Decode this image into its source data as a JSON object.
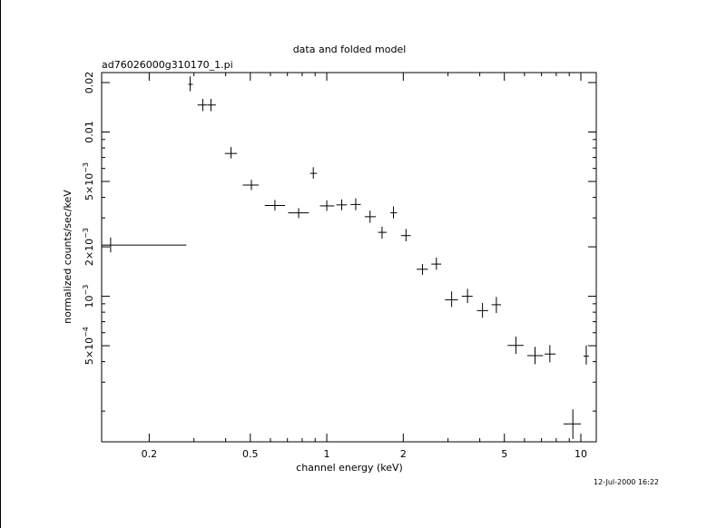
{
  "chart_data": {
    "type": "scatter",
    "title": "data and folded model",
    "subtitle": "ad76026000g310170_1.pi",
    "xlabel": "channel energy (keV)",
    "ylabel": "normalized counts/sec/keV",
    "timestamp": "12-Jul-2000 16:22",
    "x_scale": "log",
    "y_scale": "log",
    "xlim": [
      0.13,
      11.5
    ],
    "ylim": [
      0.00013,
      0.023
    ],
    "x_ticks": [
      {
        "value": 0.2,
        "label": "0.2"
      },
      {
        "value": 0.5,
        "label": "0.5"
      },
      {
        "value": 1,
        "label": "1"
      },
      {
        "value": 2,
        "label": "2"
      },
      {
        "value": 5,
        "label": "5"
      },
      {
        "value": 10,
        "label": "10"
      }
    ],
    "y_ticks": [
      {
        "value": 0.02,
        "label": "0.02"
      },
      {
        "value": 0.01,
        "label": "0.01"
      },
      {
        "value": 0.005,
        "mantissa": "5×10",
        "exponent": "−3"
      },
      {
        "value": 0.002,
        "mantissa": "2×10",
        "exponent": "−3"
      },
      {
        "value": 0.001,
        "mantissa": "10",
        "exponent": "−3"
      },
      {
        "value": 0.0005,
        "mantissa": "5×10",
        "exponent": "−4"
      }
    ],
    "points": [
      {
        "x": 0.141,
        "xlo": 0.13,
        "xhi": 0.28,
        "y": 0.00205,
        "ylo": 0.00185,
        "yhi": 0.00228
      },
      {
        "x": 0.29,
        "xlo": 0.285,
        "xhi": 0.297,
        "y": 0.0195,
        "ylo": 0.0177,
        "yhi": 0.0218
      },
      {
        "x": 0.325,
        "xlo": 0.31,
        "xhi": 0.338,
        "y": 0.0146,
        "ylo": 0.0134,
        "yhi": 0.0159
      },
      {
        "x": 0.35,
        "xlo": 0.339,
        "xhi": 0.366,
        "y": 0.0146,
        "ylo": 0.0134,
        "yhi": 0.0159
      },
      {
        "x": 0.42,
        "xlo": 0.397,
        "xhi": 0.443,
        "y": 0.0074,
        "ylo": 0.0069,
        "yhi": 0.0081
      },
      {
        "x": 0.505,
        "xlo": 0.467,
        "xhi": 0.54,
        "y": 0.00475,
        "ylo": 0.00443,
        "yhi": 0.00512
      },
      {
        "x": 0.625,
        "xlo": 0.57,
        "xhi": 0.685,
        "y": 0.00357,
        "ylo": 0.00333,
        "yhi": 0.00386
      },
      {
        "x": 0.775,
        "xlo": 0.705,
        "xhi": 0.85,
        "y": 0.00322,
        "ylo": 0.00299,
        "yhi": 0.00344
      },
      {
        "x": 0.885,
        "xlo": 0.86,
        "xhi": 0.915,
        "y": 0.0056,
        "ylo": 0.0052,
        "yhi": 0.0061
      },
      {
        "x": 1.0,
        "xlo": 0.94,
        "xhi": 1.07,
        "y": 0.00355,
        "ylo": 0.00331,
        "yhi": 0.00384
      },
      {
        "x": 1.145,
        "xlo": 1.09,
        "xhi": 1.2,
        "y": 0.0036,
        "ylo": 0.00334,
        "yhi": 0.00389
      },
      {
        "x": 1.3,
        "xlo": 1.24,
        "xhi": 1.36,
        "y": 0.00362,
        "ylo": 0.00334,
        "yhi": 0.00395
      },
      {
        "x": 1.48,
        "xlo": 1.41,
        "xhi": 1.56,
        "y": 0.00305,
        "ylo": 0.0028,
        "yhi": 0.00332
      },
      {
        "x": 1.65,
        "xlo": 1.59,
        "xhi": 1.72,
        "y": 0.00245,
        "ylo": 0.00224,
        "yhi": 0.00265
      },
      {
        "x": 1.83,
        "xlo": 1.78,
        "xhi": 1.89,
        "y": 0.00322,
        "ylo": 0.00298,
        "yhi": 0.00352
      },
      {
        "x": 2.05,
        "xlo": 1.96,
        "xhi": 2.14,
        "y": 0.00234,
        "ylo": 0.00216,
        "yhi": 0.00257
      },
      {
        "x": 2.38,
        "xlo": 2.26,
        "xhi": 2.5,
        "y": 0.00146,
        "ylo": 0.00135,
        "yhi": 0.00157
      },
      {
        "x": 2.7,
        "xlo": 2.58,
        "xhi": 2.82,
        "y": 0.00157,
        "ylo": 0.00145,
        "yhi": 0.00172
      },
      {
        "x": 3.1,
        "xlo": 2.92,
        "xhi": 3.28,
        "y": 0.000952,
        "ylo": 0.00086,
        "yhi": 0.00107
      },
      {
        "x": 3.58,
        "xlo": 3.4,
        "xhi": 3.75,
        "y": 0.001,
        "ylo": 0.00091,
        "yhi": 0.00111
      },
      {
        "x": 4.1,
        "xlo": 3.9,
        "xhi": 4.32,
        "y": 0.000818,
        "ylo": 0.00074,
        "yhi": 0.00091
      },
      {
        "x": 4.65,
        "xlo": 4.45,
        "xhi": 4.85,
        "y": 0.000888,
        "ylo": 0.00079,
        "yhi": 0.00099
      },
      {
        "x": 5.55,
        "xlo": 5.15,
        "xhi": 5.95,
        "y": 0.000502,
        "ylo": 0.000446,
        "yhi": 0.000568
      },
      {
        "x": 6.6,
        "xlo": 6.15,
        "xhi": 7.1,
        "y": 0.000435,
        "ylo": 0.000386,
        "yhi": 0.000492
      },
      {
        "x": 7.55,
        "xlo": 7.2,
        "xhi": 7.95,
        "y": 0.000445,
        "ylo": 0.000396,
        "yhi": 0.000504
      },
      {
        "x": 9.3,
        "xlo": 8.55,
        "xhi": 10.0,
        "y": 0.000167,
        "ylo": 0.000135,
        "yhi": 0.000205
      },
      {
        "x": 10.5,
        "xlo": 10.25,
        "xhi": 10.75,
        "y": 0.000432,
        "ylo": 0.000384,
        "yhi": 0.000502
      }
    ],
    "grid": false,
    "legend": "none",
    "colors": {
      "foreground": "#000000",
      "background": "#ffffff"
    }
  }
}
